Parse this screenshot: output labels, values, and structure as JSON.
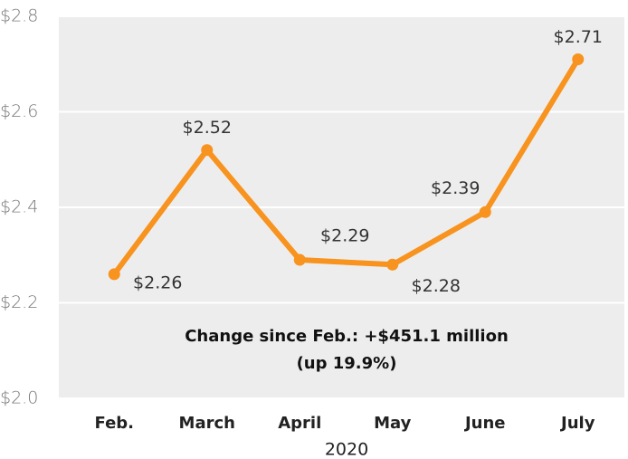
{
  "chart_data": {
    "type": "line",
    "categories": [
      "Feb.",
      "March",
      "April",
      "May",
      "June",
      "July"
    ],
    "series": [
      {
        "color": "#f7931e",
        "values": [
          2.26,
          2.52,
          2.29,
          2.28,
          2.39,
          2.71
        ],
        "value_labels": [
          "$2.26",
          "$2.52",
          "$2.29",
          "$2.28",
          "$2.39",
          "$2.71"
        ]
      }
    ],
    "ylim": [
      2.0,
      2.8
    ],
    "yticks": [
      {
        "value": 2.0,
        "label": "$2.0"
      },
      {
        "value": 2.2,
        "label": "$2.2"
      },
      {
        "value": 2.4,
        "label": "$2.4"
      },
      {
        "value": 2.6,
        "label": "$2.6"
      },
      {
        "value": 2.8,
        "label": "$2.8"
      }
    ],
    "grid": true,
    "xlabel": "2020",
    "annotation": [
      "Change since Feb.: +$451.1 million",
      "(up 19.9%)"
    ]
  }
}
